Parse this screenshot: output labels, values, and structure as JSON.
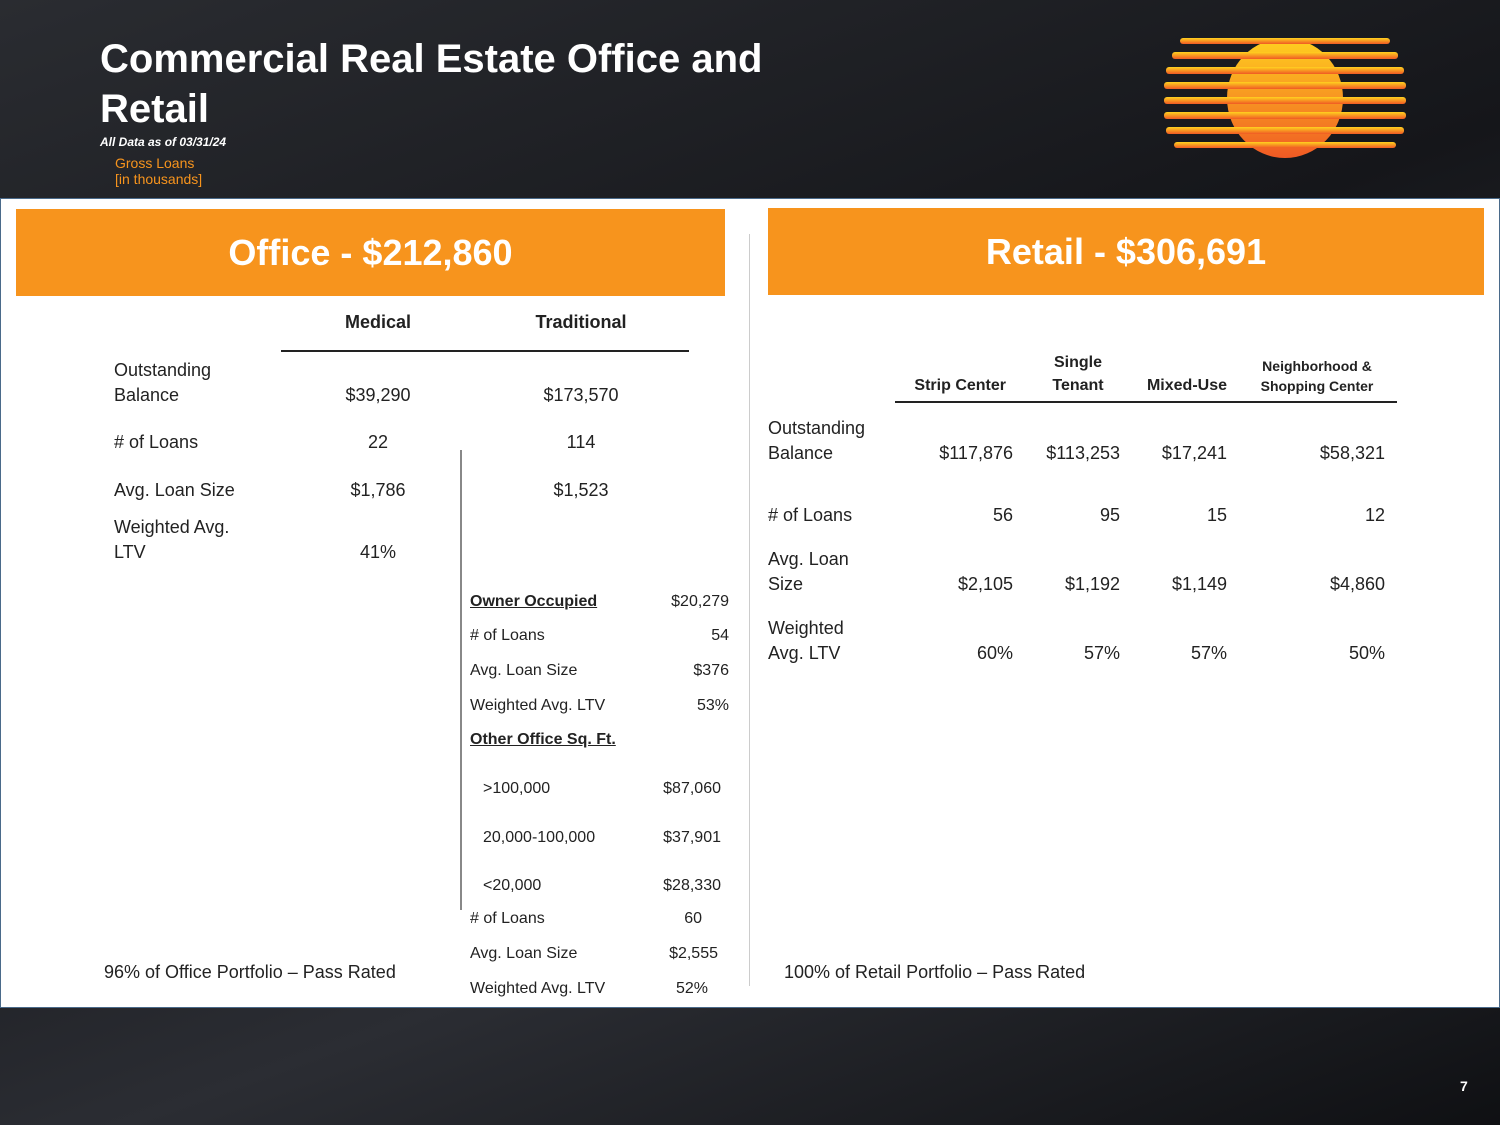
{
  "header": {
    "title": "Commercial Real Estate Office and Retail",
    "subtitle": "All Data as of 03/31/24",
    "note": [
      "Gross Loans",
      "[in thousands]"
    ]
  },
  "office": {
    "banner": "Office - $212,860",
    "columns": [
      "Medical",
      "Traditional"
    ],
    "rows": [
      {
        "label": "Outstanding Balance",
        "values": [
          "$39,290",
          "$173,570"
        ]
      },
      {
        "label": "# of Loans",
        "values": [
          "22",
          "114"
        ]
      },
      {
        "label": "Avg. Loan Size",
        "values": [
          "$1,786",
          "$1,523"
        ]
      },
      {
        "label": "Weighted Avg. LTV",
        "values": [
          "41%"
        ]
      }
    ],
    "owner_occupied": {
      "heading": "Owner Occupied",
      "value": "$20,279",
      "rows": [
        [
          "# of Loans",
          "54"
        ],
        [
          "Avg. Loan Size",
          "$376"
        ],
        [
          "Weighted Avg. LTV",
          "53%"
        ]
      ]
    },
    "other": {
      "heading": "Other Office Sq. Ft.",
      "sizes": [
        [
          ">100,000",
          "$87,060"
        ],
        [
          "20,000-100,000",
          "$37,901"
        ],
        [
          "<20,000",
          "$28,330"
        ]
      ],
      "rows": [
        [
          "# of Loans",
          "60"
        ],
        [
          "Avg. Loan Size",
          "$2,555"
        ],
        [
          "Weighted Avg. LTV",
          "52%"
        ]
      ]
    },
    "footnote": "96% of Office Portfolio – Pass Rated"
  },
  "retail": {
    "banner": "Retail - $306,691",
    "columns": [
      "Strip Center",
      "Single Tenant",
      "Mixed-Use",
      "Neighborhood & Shopping Center"
    ],
    "rows": [
      {
        "label": "Outstanding Balance",
        "values": [
          "$117,876",
          "$113,253",
          "$17,241",
          "$58,321"
        ]
      },
      {
        "label": "# of Loans",
        "values": [
          "56",
          "95",
          "15",
          "12"
        ]
      },
      {
        "label": "Avg. Loan Size",
        "values": [
          "$2,105",
          "$1,192",
          "$1,149",
          "$4,860"
        ]
      },
      {
        "label": "Weighted Avg. LTV",
        "values": [
          "60%",
          "57%",
          "57%",
          "50%"
        ]
      }
    ],
    "footnote": "100% of Retail Portfolio – Pass Rated"
  },
  "page_number": "7"
}
